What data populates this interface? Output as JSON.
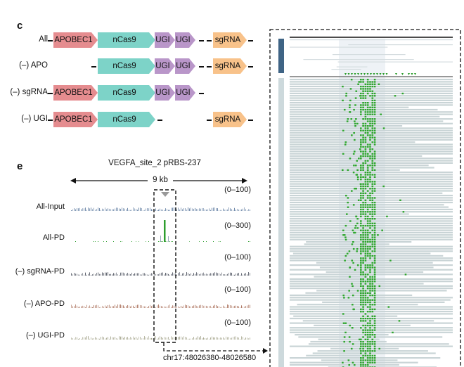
{
  "panel_c": {
    "letter": "c",
    "rows": [
      {
        "label": "All",
        "parts": [
          "APOBEC1",
          "nCas9",
          "UGI",
          "UGI",
          "sgRNA"
        ]
      },
      {
        "label": "(–) APO",
        "parts": [
          "nCas9",
          "UGI",
          "UGI",
          "sgRNA"
        ]
      },
      {
        "label": "(–) sgRNA",
        "parts": [
          "APOBEC1",
          "nCas9",
          "UGI",
          "UGI"
        ]
      },
      {
        "label": "(–) UGI",
        "parts": [
          "APOBEC1",
          "nCas9",
          "sgRNA"
        ]
      }
    ],
    "colors": {
      "APOBEC1": "#e58c8f",
      "nCas9": "#7dd3c8",
      "UGI": "#b996c9",
      "sgRNA": "#f8c28a"
    }
  },
  "panel_e": {
    "letter": "e",
    "title": "VEGFA_site_2 pRBS-237",
    "scale_label": "9 kb",
    "tracks": [
      {
        "label": "All-Input",
        "range": "(0–100)",
        "color": "#6b86a8"
      },
      {
        "label": "All-PD",
        "range": "(0–300)",
        "color": "#2e9e2e"
      },
      {
        "label": "(–) sgRNA-PD",
        "range": "(0–100)",
        "color": "#555a66"
      },
      {
        "label": "(–) APO-PD",
        "range": "(0–100)",
        "color": "#b07a66"
      },
      {
        "label": "(–) UGI-PD",
        "range": "(0–100)",
        "color": "#a8a890"
      }
    ],
    "zoom_region": "chr17:48026380-48026580"
  }
}
